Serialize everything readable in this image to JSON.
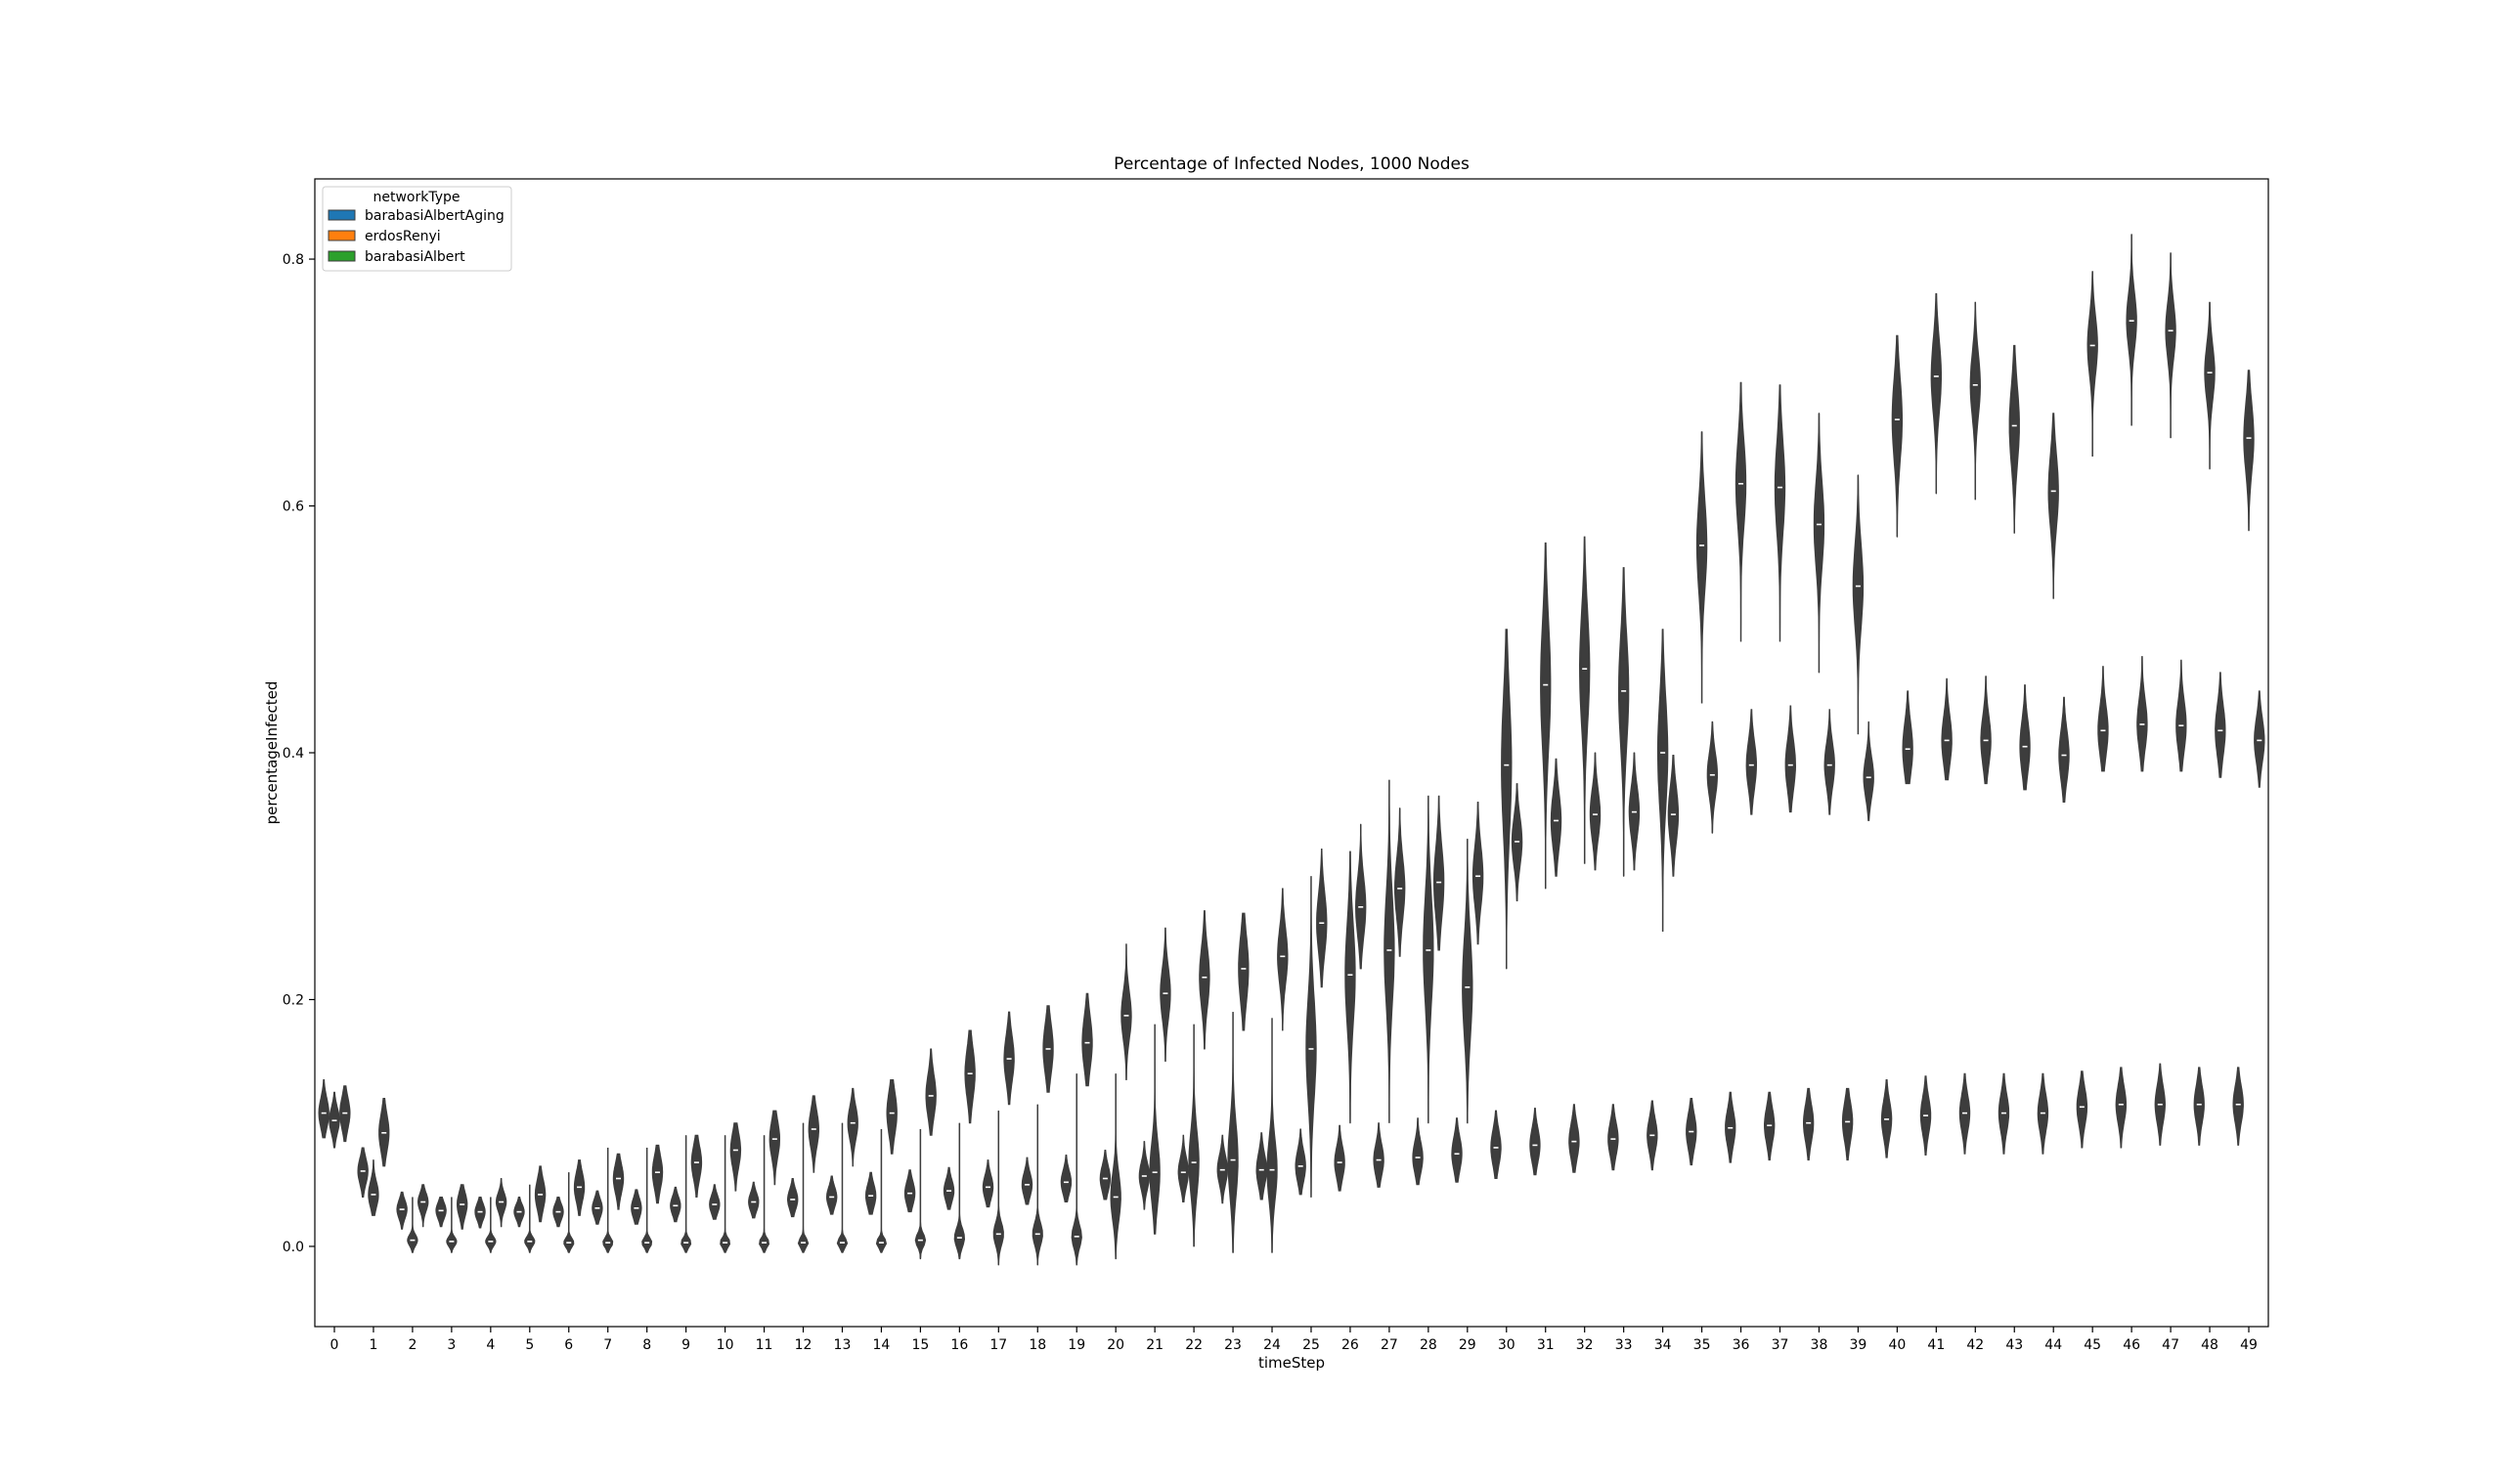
{
  "chart_data": {
    "type": "violin",
    "title": "Percentage of Infected Nodes, 1000 Nodes",
    "xlabel": "timeStep",
    "ylabel": "percentageInfected",
    "ylim": [
      -0.065,
      0.865
    ],
    "yticks": [
      "0.0",
      "0.2",
      "0.4",
      "0.6",
      "0.8"
    ],
    "ytick_values": [
      0.0,
      0.2,
      0.4,
      0.6,
      0.8
    ],
    "grid": false,
    "legend": {
      "title": "networkType",
      "placement": "top-left",
      "entries": [
        {
          "name": "barabasiAlbertAging",
          "color": "#1f77b4"
        },
        {
          "name": "erdosRenyi",
          "color": "#ff7f0e"
        },
        {
          "name": "barabasiAlbert",
          "color": "#2ca02c"
        }
      ]
    },
    "violin_color": "#3d3d3d",
    "categories": [
      "0",
      "1",
      "2",
      "3",
      "4",
      "5",
      "6",
      "7",
      "8",
      "9",
      "10",
      "11",
      "12",
      "13",
      "14",
      "15",
      "16",
      "17",
      "18",
      "19",
      "20",
      "21",
      "22",
      "23",
      "24",
      "25",
      "26",
      "27",
      "28",
      "29",
      "30",
      "31",
      "32",
      "33",
      "34",
      "35",
      "36",
      "37",
      "38",
      "39",
      "40",
      "41",
      "42",
      "43",
      "44",
      "45",
      "46",
      "47",
      "48",
      "49"
    ],
    "series": [
      {
        "name": "barabasiAlbertAging",
        "median": [
          0.108,
          0.061,
          0.03,
          0.029,
          0.028,
          0.028,
          0.028,
          0.031,
          0.031,
          0.033,
          0.034,
          0.036,
          0.038,
          0.04,
          0.041,
          0.043,
          0.045,
          0.048,
          0.05,
          0.052,
          0.055,
          0.057,
          0.06,
          0.062,
          0.062,
          0.065,
          0.068,
          0.07,
          0.072,
          0.075,
          0.08,
          0.082,
          0.085,
          0.087,
          0.09,
          0.093,
          0.096,
          0.098,
          0.1,
          0.101,
          0.103,
          0.106,
          0.108,
          0.108,
          0.108,
          0.113,
          0.115,
          0.115,
          0.115,
          0.115
        ],
        "q1": [
          0.1,
          0.054,
          0.024,
          0.024,
          0.023,
          0.024,
          0.024,
          0.026,
          0.026,
          0.028,
          0.029,
          0.031,
          0.033,
          0.035,
          0.035,
          0.037,
          0.039,
          0.042,
          0.044,
          0.046,
          0.048,
          0.05,
          0.052,
          0.054,
          0.054,
          0.057,
          0.059,
          0.062,
          0.064,
          0.066,
          0.07,
          0.073,
          0.076,
          0.078,
          0.081,
          0.083,
          0.086,
          0.088,
          0.09,
          0.09,
          0.093,
          0.096,
          0.098,
          0.098,
          0.098,
          0.103,
          0.105,
          0.105,
          0.105,
          0.105
        ],
        "q3": [
          0.116,
          0.068,
          0.034,
          0.033,
          0.032,
          0.032,
          0.033,
          0.036,
          0.037,
          0.038,
          0.039,
          0.041,
          0.044,
          0.046,
          0.048,
          0.05,
          0.051,
          0.055,
          0.057,
          0.059,
          0.062,
          0.065,
          0.068,
          0.07,
          0.072,
          0.074,
          0.076,
          0.079,
          0.081,
          0.084,
          0.089,
          0.091,
          0.095,
          0.096,
          0.099,
          0.102,
          0.105,
          0.107,
          0.11,
          0.111,
          0.113,
          0.116,
          0.118,
          0.118,
          0.118,
          0.123,
          0.125,
          0.125,
          0.125,
          0.125
        ],
        "min": [
          0.088,
          0.04,
          0.014,
          0.016,
          0.015,
          0.016,
          0.016,
          0.018,
          0.018,
          0.02,
          0.022,
          0.023,
          0.024,
          0.026,
          0.026,
          0.028,
          0.03,
          0.032,
          0.034,
          0.036,
          0.038,
          0.03,
          0.036,
          0.035,
          0.038,
          0.042,
          0.045,
          0.048,
          0.05,
          0.052,
          0.055,
          0.058,
          0.06,
          0.062,
          0.062,
          0.066,
          0.068,
          0.07,
          0.07,
          0.07,
          0.072,
          0.074,
          0.075,
          0.075,
          0.075,
          0.08,
          0.08,
          0.082,
          0.082,
          0.082
        ],
        "max": [
          0.135,
          0.08,
          0.044,
          0.04,
          0.04,
          0.04,
          0.04,
          0.045,
          0.046,
          0.048,
          0.05,
          0.052,
          0.055,
          0.057,
          0.06,
          0.062,
          0.064,
          0.07,
          0.072,
          0.074,
          0.078,
          0.085,
          0.09,
          0.09,
          0.092,
          0.095,
          0.098,
          0.1,
          0.104,
          0.104,
          0.11,
          0.112,
          0.115,
          0.115,
          0.118,
          0.12,
          0.125,
          0.125,
          0.128,
          0.128,
          0.135,
          0.138,
          0.14,
          0.14,
          0.14,
          0.142,
          0.145,
          0.148,
          0.145,
          0.145
        ]
      },
      {
        "name": "erdosRenyi",
        "median": [
          0.102,
          0.042,
          0.005,
          0.004,
          0.004,
          0.004,
          0.003,
          0.003,
          0.003,
          0.003,
          0.003,
          0.003,
          0.003,
          0.003,
          0.003,
          0.005,
          0.007,
          0.01,
          0.01,
          0.008,
          0.04,
          0.06,
          0.068,
          0.07,
          0.062,
          0.16,
          0.22,
          0.24,
          0.24,
          0.21,
          0.39,
          0.455,
          0.468,
          0.45,
          0.4,
          0.568,
          0.618,
          0.615,
          0.585,
          0.535,
          0.67,
          0.705,
          0.698,
          0.665,
          0.612,
          0.73,
          0.75,
          0.742,
          0.708,
          0.655
        ],
        "q1": [
          0.096,
          0.036,
          0.002,
          0.001,
          0.001,
          0.001,
          0.0,
          0.0,
          0.0,
          0.0,
          0.0,
          0.0,
          0.0,
          0.0,
          0.0,
          0.001,
          0.002,
          0.004,
          0.004,
          0.002,
          0.026,
          0.042,
          0.05,
          0.05,
          0.045,
          0.135,
          0.2,
          0.22,
          0.21,
          0.185,
          0.35,
          0.42,
          0.438,
          0.415,
          0.37,
          0.545,
          0.593,
          0.59,
          0.562,
          0.515,
          0.655,
          0.69,
          0.685,
          0.645,
          0.595,
          0.718,
          0.738,
          0.728,
          0.695,
          0.638
        ],
        "q3": [
          0.11,
          0.05,
          0.008,
          0.006,
          0.006,
          0.006,
          0.005,
          0.005,
          0.005,
          0.005,
          0.005,
          0.005,
          0.005,
          0.005,
          0.005,
          0.008,
          0.012,
          0.016,
          0.016,
          0.014,
          0.052,
          0.075,
          0.085,
          0.09,
          0.078,
          0.19,
          0.255,
          0.28,
          0.27,
          0.24,
          0.425,
          0.49,
          0.5,
          0.475,
          0.43,
          0.595,
          0.64,
          0.64,
          0.608,
          0.56,
          0.7,
          0.73,
          0.72,
          0.688,
          0.635,
          0.75,
          0.768,
          0.758,
          0.725,
          0.675
        ],
        "min": [
          0.08,
          0.025,
          -0.005,
          -0.005,
          -0.005,
          -0.005,
          -0.005,
          -0.005,
          -0.005,
          -0.005,
          -0.005,
          -0.005,
          -0.005,
          -0.005,
          -0.005,
          -0.01,
          -0.01,
          -0.015,
          -0.015,
          -0.015,
          -0.01,
          0.01,
          0.0,
          -0.005,
          -0.005,
          0.04,
          0.1,
          0.1,
          0.1,
          0.1,
          0.225,
          0.29,
          0.31,
          0.3,
          0.255,
          0.44,
          0.49,
          0.49,
          0.465,
          0.415,
          0.575,
          0.61,
          0.605,
          0.578,
          0.525,
          0.64,
          0.665,
          0.655,
          0.63,
          0.58
        ],
        "max": [
          0.125,
          0.07,
          0.04,
          0.04,
          0.04,
          0.05,
          0.06,
          0.08,
          0.08,
          0.09,
          0.09,
          0.09,
          0.1,
          0.1,
          0.095,
          0.095,
          0.1,
          0.11,
          0.115,
          0.14,
          0.14,
          0.18,
          0.18,
          0.19,
          0.185,
          0.3,
          0.32,
          0.378,
          0.365,
          0.33,
          0.5,
          0.57,
          0.575,
          0.55,
          0.5,
          0.66,
          0.7,
          0.698,
          0.675,
          0.625,
          0.738,
          0.772,
          0.765,
          0.73,
          0.675,
          0.79,
          0.82,
          0.805,
          0.765,
          0.71
        ]
      },
      {
        "name": "barabasiAlbert",
        "median": [
          0.108,
          0.092,
          0.036,
          0.034,
          0.036,
          0.042,
          0.048,
          0.055,
          0.06,
          0.068,
          0.078,
          0.087,
          0.095,
          0.1,
          0.108,
          0.122,
          0.14,
          0.152,
          0.16,
          0.165,
          0.187,
          0.205,
          0.218,
          0.225,
          0.235,
          0.262,
          0.275,
          0.29,
          0.295,
          0.3,
          0.328,
          0.345,
          0.35,
          0.352,
          0.35,
          0.382,
          0.39,
          0.39,
          0.39,
          0.38,
          0.403,
          0.41,
          0.41,
          0.405,
          0.398,
          0.418,
          0.423,
          0.422,
          0.418,
          0.41
        ],
        "q1": [
          0.098,
          0.082,
          0.03,
          0.027,
          0.03,
          0.034,
          0.04,
          0.046,
          0.05,
          0.058,
          0.067,
          0.075,
          0.083,
          0.09,
          0.095,
          0.11,
          0.125,
          0.138,
          0.145,
          0.15,
          0.172,
          0.19,
          0.2,
          0.21,
          0.22,
          0.245,
          0.26,
          0.275,
          0.28,
          0.285,
          0.315,
          0.33,
          0.335,
          0.338,
          0.335,
          0.368,
          0.376,
          0.378,
          0.376,
          0.368,
          0.39,
          0.398,
          0.398,
          0.392,
          0.385,
          0.405,
          0.41,
          0.41,
          0.405,
          0.398
        ],
        "q3": [
          0.115,
          0.102,
          0.04,
          0.04,
          0.04,
          0.05,
          0.056,
          0.062,
          0.068,
          0.076,
          0.086,
          0.095,
          0.103,
          0.108,
          0.118,
          0.133,
          0.152,
          0.163,
          0.172,
          0.178,
          0.198,
          0.218,
          0.232,
          0.245,
          0.25,
          0.278,
          0.292,
          0.308,
          0.318,
          0.318,
          0.342,
          0.36,
          0.362,
          0.365,
          0.365,
          0.392,
          0.402,
          0.405,
          0.4,
          0.39,
          0.418,
          0.425,
          0.425,
          0.42,
          0.412,
          0.432,
          0.437,
          0.437,
          0.432,
          0.422
        ],
        "min": [
          0.085,
          0.065,
          0.016,
          0.014,
          0.016,
          0.02,
          0.025,
          0.03,
          0.035,
          0.04,
          0.045,
          0.05,
          0.06,
          0.065,
          0.075,
          0.09,
          0.1,
          0.115,
          0.125,
          0.13,
          0.135,
          0.15,
          0.16,
          0.175,
          0.175,
          0.21,
          0.225,
          0.235,
          0.24,
          0.245,
          0.28,
          0.3,
          0.305,
          0.305,
          0.3,
          0.335,
          0.35,
          0.352,
          0.35,
          0.345,
          0.375,
          0.378,
          0.375,
          0.37,
          0.36,
          0.385,
          0.385,
          0.385,
          0.38,
          0.372
        ],
        "max": [
          0.13,
          0.12,
          0.05,
          0.05,
          0.055,
          0.065,
          0.07,
          0.075,
          0.082,
          0.09,
          0.1,
          0.11,
          0.122,
          0.128,
          0.135,
          0.16,
          0.175,
          0.19,
          0.195,
          0.205,
          0.245,
          0.258,
          0.272,
          0.27,
          0.29,
          0.322,
          0.342,
          0.355,
          0.365,
          0.36,
          0.375,
          0.395,
          0.4,
          0.4,
          0.398,
          0.425,
          0.435,
          0.438,
          0.435,
          0.425,
          0.45,
          0.46,
          0.462,
          0.455,
          0.445,
          0.47,
          0.478,
          0.475,
          0.465,
          0.45
        ]
      }
    ]
  }
}
